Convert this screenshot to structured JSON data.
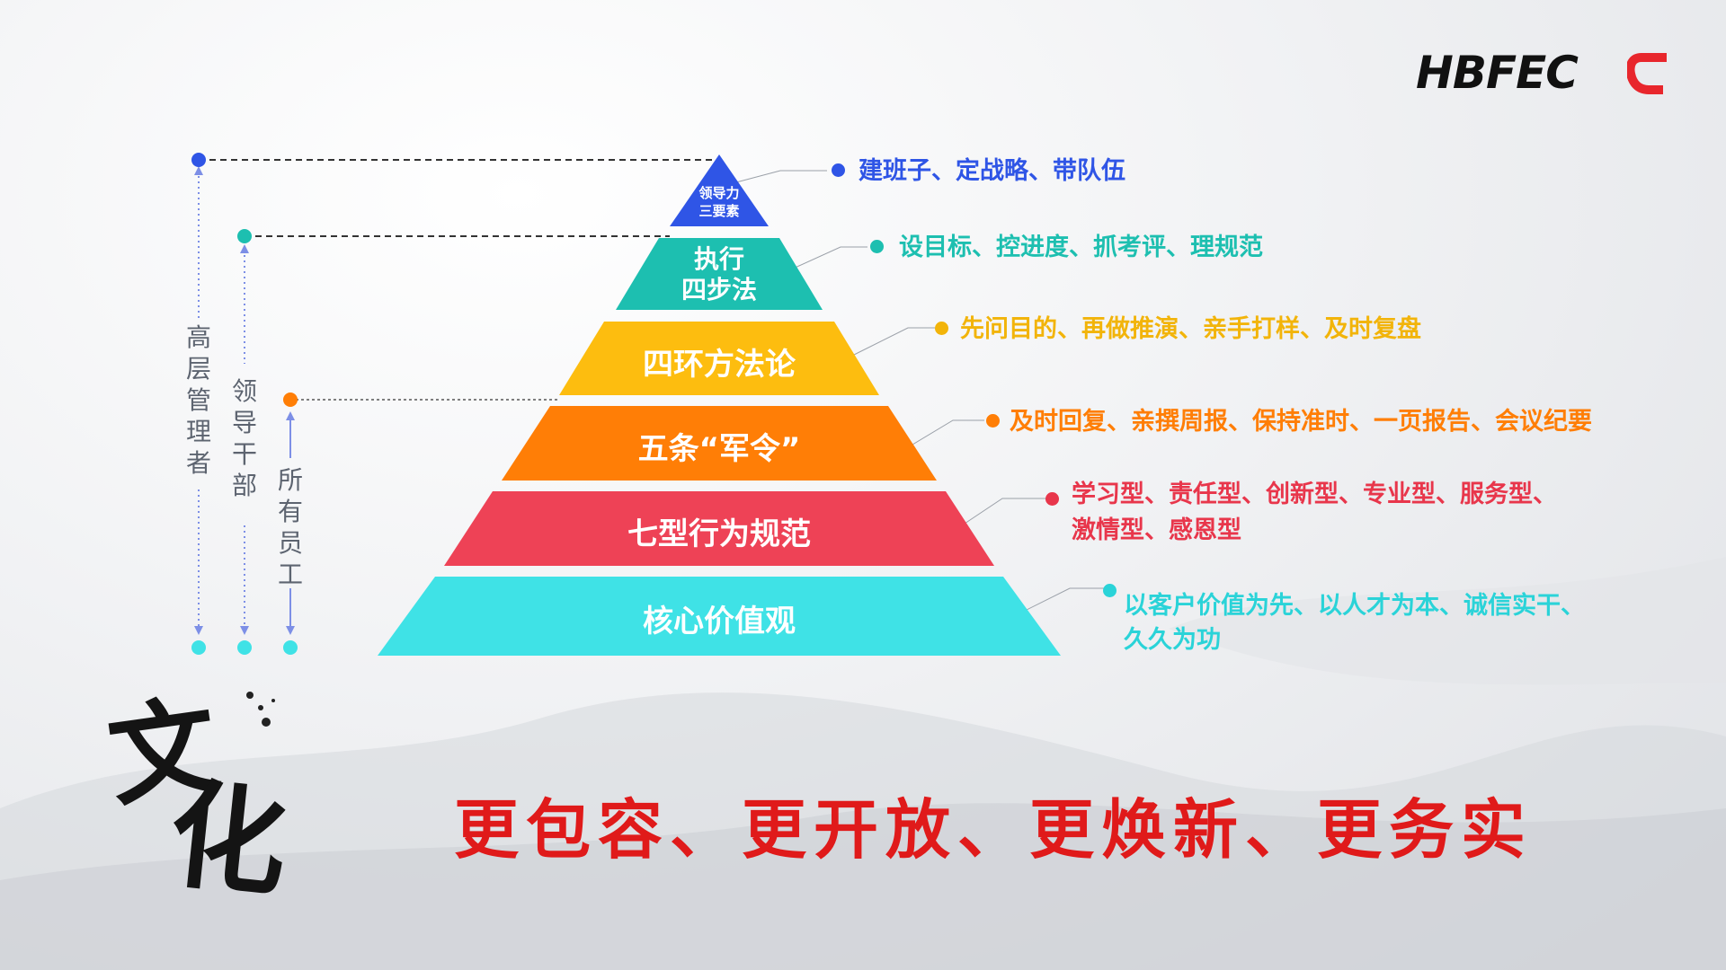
{
  "logo": {
    "text": "HBFEC",
    "accent": "#e8262c"
  },
  "slogan": "更包容、更开放、更焕新、更务实",
  "calligraphy": {
    "char1": "文",
    "char2": "化"
  },
  "side_labels": [
    {
      "text": "高层管理者",
      "color": "#2f55e6"
    },
    {
      "text": "领导干部",
      "color": "#1abc9c"
    },
    {
      "text": "所有员工",
      "color": "#ff7a00"
    }
  ],
  "levels": [
    {
      "label": "领导力三要素",
      "line1": "领导力",
      "line2": "三要素",
      "color": "#2f55e6",
      "desc": "建班子、定战略、带队伍",
      "desc_color": "#2f55e6"
    },
    {
      "label": "执行四步法",
      "line1": "执行",
      "line2": "四步法",
      "color": "#1dbfb0",
      "desc": "设目标、控进度、抓考评、理规范",
      "desc_color": "#1dbfb0"
    },
    {
      "label": "四环方法论",
      "color": "#fdbd0f",
      "desc": "先问目的、再做推演、亲手打样、及时复盘",
      "desc_color": "#f2b40a"
    },
    {
      "label": "五条“军令”",
      "color": "#ff7e06",
      "desc": "及时回复、亲撰周报、保持准时、一页报告、会议纪要",
      "desc_color": "#ff7e06"
    },
    {
      "label": "七型行为规范",
      "color": "#ee4256",
      "desc1": "学习型、责任型、创新型、专业型、服务型、",
      "desc2": "激情型、感恩型",
      "desc_color": "#e8364b"
    },
    {
      "label": "核心价值观",
      "color": "#3fe2e6",
      "desc1": "以客户价值为先、以人才为本、诚信实干、",
      "desc2": "久久为功",
      "desc_color": "#2ad3d8"
    }
  ]
}
